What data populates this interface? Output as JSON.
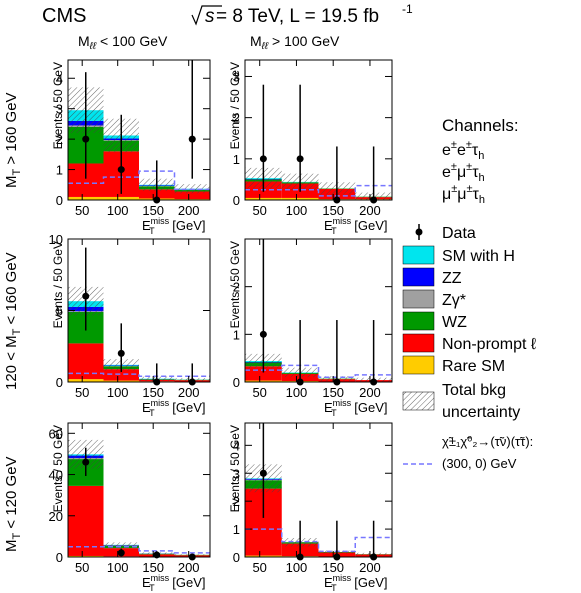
{
  "header": {
    "experiment": "CMS",
    "energy_prefix": "s",
    "energy_text": " = 8 TeV, L = 19.5 fb",
    "lumi_exp": "-1"
  },
  "colors": {
    "sm_with_h": "#00e5ee",
    "zz": "#0000ff",
    "zgamma": "#a0a0a0",
    "wz": "#009900",
    "nonprompt": "#ff0000",
    "raresm": "#ffcc00",
    "signal": "#7777ff",
    "data": "#000000"
  },
  "columns": [
    {
      "m": "M",
      "sub": "ℓℓ",
      "rest": " < 100 GeV"
    },
    {
      "m": "M",
      "sub": "ℓℓ",
      "rest": " > 100 GeV"
    }
  ],
  "rows": [
    {
      "label": "M",
      "sub": "T",
      "rest": " > 160 GeV"
    },
    {
      "label": "120 < M",
      "sub": "T",
      "rest": " < 160 GeV"
    },
    {
      "label": "M",
      "sub": "T",
      "rest": " < 120 GeV"
    }
  ],
  "axis_common": {
    "ylabel": "Events / 50 GeV",
    "xlabel_main": "E",
    "xlabel_sup": "miss",
    "xlabel_sub": "T",
    "xlabel_unit": " [GeV]"
  },
  "channels": {
    "title": "Channels:",
    "items": [
      {
        "pre": "e",
        "sup1": "±",
        "mid": "e",
        "sup2": "±",
        "tau": "τ",
        "sub": "h"
      },
      {
        "pre": "e",
        "sup1": "±",
        "mid": "μ",
        "sup2": "±",
        "tau": "τ",
        "sub": "h"
      },
      {
        "pre": "μ",
        "sup1": "±",
        "mid": "μ",
        "sup2": "±",
        "tau": "τ",
        "sub": "h"
      }
    ]
  },
  "legend": {
    "data": "Data",
    "sm_with_h": "SM with H",
    "zz": "ZZ",
    "zgamma": "Zγ*",
    "wz": "WZ",
    "nonprompt": "Non-prompt ℓ",
    "raresm": "Rare SM",
    "unc_line1": "Total bkg",
    "unc_line2": "uncertainty",
    "signal_line1": "χ̃±₁χ̃⁰₂→(τ̃ν)(τ̃τ):",
    "signal_line2": "(300, 0) GeV"
  },
  "chart_data": [
    {
      "type": "bar",
      "stacked": true,
      "panel": "row1-col1",
      "bin_edges": [
        30,
        80,
        130,
        180,
        230
      ],
      "ylim": [
        0,
        4.6
      ],
      "yticks": [
        0,
        1,
        2,
        3,
        4
      ],
      "xticks": [
        50,
        100,
        150,
        200
      ],
      "series": [
        {
          "name": "Rare SM",
          "values": [
            0.1,
            0.1,
            0.05,
            0.03
          ]
        },
        {
          "name": "Non-prompt ℓ",
          "values": [
            1.1,
            1.5,
            0.3,
            0.25
          ]
        },
        {
          "name": "WZ",
          "values": [
            1.2,
            0.35,
            0.1,
            0.05
          ]
        },
        {
          "name": "Zγ*",
          "values": [
            0.05,
            0.02,
            0.01,
            0.01
          ]
        },
        {
          "name": "ZZ",
          "values": [
            0.15,
            0.05,
            0.02,
            0.01
          ]
        },
        {
          "name": "SM with H",
          "values": [
            0.35,
            0.1,
            0.02,
            0.02
          ]
        }
      ],
      "uncertainty": [
        0.75,
        0.55,
        0.2,
        0.15
      ],
      "signal": [
        0.55,
        0.75,
        0.95,
        0.35
      ],
      "data": {
        "x": [
          55,
          105,
          155,
          205
        ],
        "y": [
          2,
          1,
          0,
          2
        ],
        "up": [
          2.2,
          1.8,
          1.3,
          2.6
        ],
        "down": [
          1.3,
          0.8,
          0,
          1.3
        ]
      }
    },
    {
      "type": "bar",
      "stacked": true,
      "panel": "row1-col2",
      "bin_edges": [
        30,
        80,
        130,
        180,
        230
      ],
      "ylim": [
        0,
        3.4
      ],
      "yticks": [
        0,
        1,
        2,
        3
      ],
      "xticks": [
        50,
        100,
        150,
        200
      ],
      "series": [
        {
          "name": "Rare SM",
          "values": [
            0.05,
            0.05,
            0.02,
            0.02
          ]
        },
        {
          "name": "Non-prompt ℓ",
          "values": [
            0.4,
            0.35,
            0.25,
            0.05
          ]
        },
        {
          "name": "WZ",
          "values": [
            0.05,
            0.03,
            0.01,
            0.01
          ]
        },
        {
          "name": "Zγ*",
          "values": [
            0.0,
            0.0,
            0.0,
            0.0
          ]
        },
        {
          "name": "ZZ",
          "values": [
            0.01,
            0.0,
            0.0,
            0.0
          ]
        },
        {
          "name": "SM with H",
          "values": [
            0.02,
            0.01,
            0.0,
            0.0
          ]
        }
      ],
      "uncertainty": [
        0.25,
        0.2,
        0.15,
        0.1
      ],
      "signal": [
        0.25,
        0.25,
        0.1,
        0.35
      ],
      "data": {
        "x": [
          55,
          105,
          155,
          205
        ],
        "y": [
          1,
          1,
          0,
          0
        ],
        "up": [
          1.8,
          1.8,
          1.3,
          1.3
        ],
        "down": [
          0.8,
          0.8,
          0,
          0
        ]
      }
    },
    {
      "type": "bar",
      "stacked": true,
      "panel": "row2-col1",
      "bin_edges": [
        30,
        80,
        130,
        180,
        230
      ],
      "ylim": [
        0,
        10
      ],
      "yticks": [
        0,
        5,
        10
      ],
      "xticks": [
        50,
        100,
        150,
        200
      ],
      "series": [
        {
          "name": "Rare SM",
          "values": [
            0.2,
            0.1,
            0.05,
            0.03
          ]
        },
        {
          "name": "Non-prompt ℓ",
          "values": [
            2.5,
            0.8,
            0.1,
            0.1
          ]
        },
        {
          "name": "WZ",
          "values": [
            2.2,
            0.2,
            0.05,
            0.03
          ]
        },
        {
          "name": "Zγ*",
          "values": [
            0.05,
            0.02,
            0.0,
            0.0
          ]
        },
        {
          "name": "ZZ",
          "values": [
            0.3,
            0.03,
            0.01,
            0.0
          ]
        },
        {
          "name": "SM with H",
          "values": [
            0.4,
            0.05,
            0.02,
            0.01
          ]
        }
      ],
      "uncertainty": [
        1.0,
        0.4,
        0.15,
        0.1
      ],
      "signal": [
        0.6,
        0.55,
        0.4,
        0.4
      ],
      "data": {
        "x": [
          55,
          105,
          155,
          205
        ],
        "y": [
          6,
          2,
          0,
          0
        ],
        "up": [
          3.4,
          2.1,
          1.3,
          1.3
        ],
        "down": [
          2.4,
          1.3,
          0,
          0
        ]
      }
    },
    {
      "type": "bar",
      "stacked": true,
      "panel": "row2-col2",
      "bin_edges": [
        30,
        80,
        130,
        180,
        230
      ],
      "ylim": [
        0,
        3.0
      ],
      "yticks": [
        0,
        1,
        2
      ],
      "xticks": [
        50,
        100,
        150,
        200
      ],
      "series": [
        {
          "name": "Rare SM",
          "values": [
            0.03,
            0.02,
            0.01,
            0.01
          ]
        },
        {
          "name": "Non-prompt ℓ",
          "values": [
            0.3,
            0.15,
            0.05,
            0.03
          ]
        },
        {
          "name": "WZ",
          "values": [
            0.08,
            0.02,
            0.01,
            0.0
          ]
        },
        {
          "name": "Zγ*",
          "values": [
            0.0,
            0.0,
            0.0,
            0.0
          ]
        },
        {
          "name": "ZZ",
          "values": [
            0.01,
            0.0,
            0.0,
            0.0
          ]
        },
        {
          "name": "SM with H",
          "values": [
            0.02,
            0.01,
            0.0,
            0.0
          ]
        }
      ],
      "uncertainty": [
        0.15,
        0.1,
        0.05,
        0.05
      ],
      "signal": [
        0.25,
        0.35,
        0.1,
        0.15
      ],
      "data": {
        "x": [
          55,
          105,
          155,
          205
        ],
        "y": [
          1,
          0,
          0,
          0
        ],
        "up": [
          2.3,
          1.3,
          1.3,
          1.3
        ],
        "down": [
          0.8,
          0,
          0,
          0
        ]
      }
    },
    {
      "type": "bar",
      "stacked": true,
      "panel": "row3-col1",
      "bin_edges": [
        30,
        80,
        130,
        180,
        230
      ],
      "ylim": [
        0,
        65
      ],
      "yticks": [
        0,
        20,
        40,
        60
      ],
      "xticks": [
        50,
        100,
        150,
        200
      ],
      "series": [
        {
          "name": "Rare SM",
          "values": [
            0.5,
            0.3,
            0.1,
            0.05
          ]
        },
        {
          "name": "Non-prompt ℓ",
          "values": [
            34,
            4,
            1.2,
            0.8
          ]
        },
        {
          "name": "WZ",
          "values": [
            13,
            1.2,
            0.3,
            0.2
          ]
        },
        {
          "name": "Zγ*",
          "values": [
            0.5,
            0.1,
            0.05,
            0.0
          ]
        },
        {
          "name": "ZZ",
          "values": [
            1.2,
            0.2,
            0.05,
            0.0
          ]
        },
        {
          "name": "SM with H",
          "values": [
            0.6,
            0.1,
            0.05,
            0.0
          ]
        }
      ],
      "uncertainty": [
        7,
        1.2,
        0.5,
        0.3
      ],
      "signal": [
        5,
        5,
        3,
        2
      ],
      "data": {
        "x": [
          55,
          105,
          155,
          205
        ],
        "y": [
          46,
          2,
          1,
          0
        ],
        "up": [
          7,
          2.1,
          1.8,
          1.3
        ],
        "down": [
          6.7,
          1.3,
          0.8,
          0
        ]
      }
    },
    {
      "type": "bar",
      "stacked": true,
      "panel": "row3-col2",
      "bin_edges": [
        30,
        80,
        130,
        180,
        230
      ],
      "ylim": [
        0,
        4.8
      ],
      "yticks": [
        0,
        1,
        2,
        3,
        4
      ],
      "xticks": [
        50,
        100,
        150,
        200
      ],
      "series": [
        {
          "name": "Rare SM",
          "values": [
            0.05,
            0.03,
            0.01,
            0.01
          ]
        },
        {
          "name": "Non-prompt ℓ",
          "values": [
            2.4,
            0.45,
            0.15,
            0.08
          ]
        },
        {
          "name": "WZ",
          "values": [
            0.3,
            0.05,
            0.02,
            0.01
          ]
        },
        {
          "name": "Zγ*",
          "values": [
            0.02,
            0.0,
            0.0,
            0.0
          ]
        },
        {
          "name": "ZZ",
          "values": [
            0.03,
            0.0,
            0.0,
            0.0
          ]
        },
        {
          "name": "SM with H",
          "values": [
            0.02,
            0.0,
            0.0,
            0.0
          ]
        }
      ],
      "uncertainty": [
        0.5,
        0.15,
        0.05,
        0.05
      ],
      "signal": [
        1.0,
        0.55,
        0.2,
        0.7
      ],
      "data": {
        "x": [
          55,
          105,
          155,
          205
        ],
        "y": [
          3,
          0,
          0,
          0
        ],
        "up": [
          2.9,
          1.3,
          1.3,
          1.3
        ],
        "down": [
          1.6,
          0,
          0,
          0
        ]
      }
    }
  ]
}
